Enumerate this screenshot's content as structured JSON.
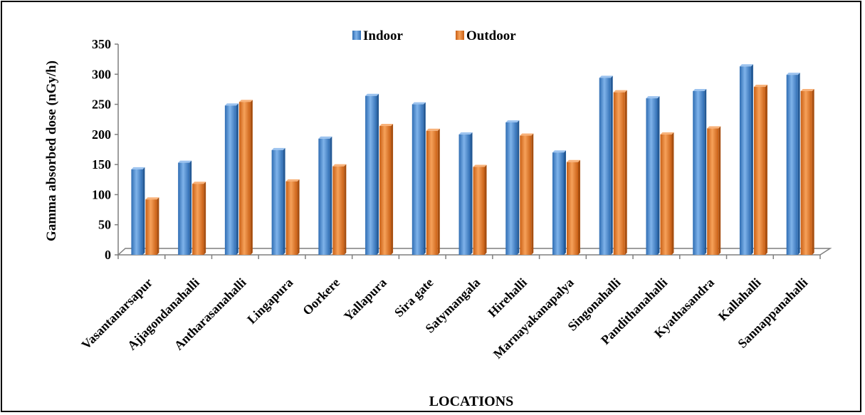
{
  "chart_data": {
    "type": "bar",
    "title": "",
    "xlabel": "LOCATIONS",
    "ylabel": "Gamma absorbed dose (nGy/h)",
    "ylim": [
      0,
      350
    ],
    "yticks": [
      0,
      50,
      100,
      150,
      200,
      250,
      300,
      350
    ],
    "grid": false,
    "legend_position": "top-center",
    "categories": [
      "Vasantanarsapur",
      "Ajjagondanahalli",
      "Antharasanahalli",
      "Lingapura",
      "Oorkere",
      "Yallapura",
      "Sira gate",
      "Satymangala",
      "Hirehalli",
      "Marnayakanapalya",
      "Singonahalli",
      "Pandithanahalli",
      "Kyathasandra",
      "Kallahalli",
      "Sannappanahalli"
    ],
    "series": [
      {
        "name": "Indoor",
        "color": "#4f8fd6",
        "values": [
          142,
          153,
          248,
          174,
          193,
          264,
          250,
          200,
          220,
          170,
          294,
          260,
          272,
          313,
          299
        ]
      },
      {
        "name": "Outdoor",
        "color": "#ee7d2c",
        "values": [
          92,
          118,
          254,
          122,
          147,
          214,
          206,
          146,
          198,
          154,
          270,
          200,
          210,
          279,
          272
        ]
      }
    ]
  }
}
